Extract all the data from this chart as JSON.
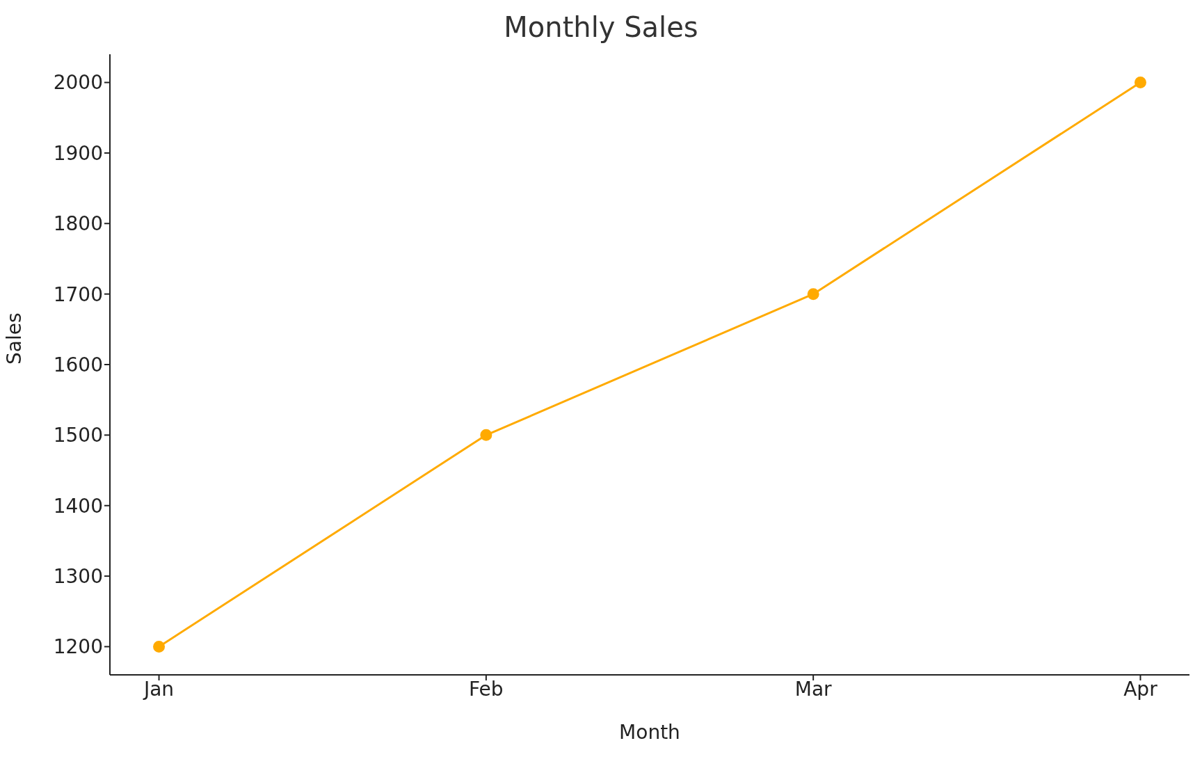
{
  "chart_data": {
    "type": "line",
    "title": "Monthly Sales",
    "xlabel": "Month",
    "ylabel": "Sales",
    "categories": [
      "Jan",
      "Feb",
      "Mar",
      "Apr"
    ],
    "series": [
      {
        "color": "#ffaa00",
        "values": [
          1200,
          1500,
          1700,
          2000
        ]
      }
    ],
    "ylim": [
      1160,
      2040
    ],
    "yticks": [
      1200,
      1300,
      1400,
      1500,
      1600,
      1700,
      1800,
      1900,
      2000
    ],
    "marker": "circle",
    "line_style": "solid",
    "grid": false,
    "legend": false
  }
}
